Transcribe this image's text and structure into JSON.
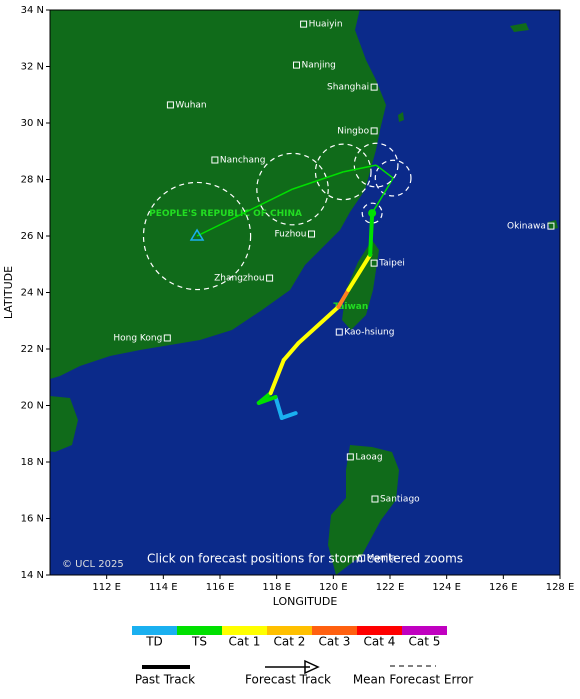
{
  "map": {
    "xlim": [
      110,
      128
    ],
    "ylim": [
      14,
      34
    ],
    "xlabel": "LONGITUDE",
    "ylabel": "LATITUDE",
    "xticks": [
      {
        "value": 112,
        "label": "112 E"
      },
      {
        "value": 114,
        "label": "114 E"
      },
      {
        "value": 116,
        "label": "116 E"
      },
      {
        "value": 118,
        "label": "118 E"
      },
      {
        "value": 120,
        "label": "120 E"
      },
      {
        "value": 122,
        "label": "122 E"
      },
      {
        "value": 124,
        "label": "124 E"
      },
      {
        "value": 126,
        "label": "126 E"
      },
      {
        "value": 128,
        "label": "128 E"
      }
    ],
    "yticks": [
      {
        "value": 14,
        "label": "14 N"
      },
      {
        "value": 16,
        "label": "16 N"
      },
      {
        "value": 18,
        "label": "18 N"
      },
      {
        "value": 20,
        "label": "20 N"
      },
      {
        "value": 22,
        "label": "22 N"
      },
      {
        "value": 24,
        "label": "24 N"
      },
      {
        "value": 26,
        "label": "26 N"
      },
      {
        "value": 28,
        "label": "28 N"
      },
      {
        "value": 30,
        "label": "30 N"
      },
      {
        "value": 32,
        "label": "32 N"
      },
      {
        "value": 34,
        "label": "34 N"
      }
    ],
    "cities": [
      {
        "name": "Huaiyin",
        "lon": 118.95,
        "lat": 33.5
      },
      {
        "name": "Nanjing",
        "lon": 118.7,
        "lat": 32.05
      },
      {
        "name": "Shanghai",
        "lon": 121.44,
        "lat": 31.27
      },
      {
        "name": "Wuhan",
        "lon": 114.25,
        "lat": 30.64
      },
      {
        "name": "Ningbo",
        "lon": 121.44,
        "lat": 29.72
      },
      {
        "name": "Nanchang",
        "lon": 115.82,
        "lat": 28.69
      },
      {
        "name": "Fuzhou",
        "lon": 119.23,
        "lat": 26.07
      },
      {
        "name": "Zhangzhou",
        "lon": 117.75,
        "lat": 24.51
      },
      {
        "name": "Taipei",
        "lon": 121.44,
        "lat": 25.04
      },
      {
        "name": "Kao-hsiung",
        "lon": 120.21,
        "lat": 22.6
      },
      {
        "name": "Hong Kong",
        "lon": 114.14,
        "lat": 22.39
      },
      {
        "name": "Okinawa",
        "lon": 127.68,
        "lat": 26.35
      },
      {
        "name": "Laoag",
        "lon": 120.6,
        "lat": 18.18
      },
      {
        "name": "Santiago",
        "lon": 121.47,
        "lat": 16.69
      },
      {
        "name": "Manila",
        "lon": 121.0,
        "lat": 14.6
      }
    ],
    "regions": [
      {
        "name": "PEOPLE'S REPUBLIC OF CHINA",
        "lon": 113.5,
        "lat": 26.8
      },
      {
        "name": "Taiwan",
        "lon": 120.0,
        "lat": 23.5
      }
    ],
    "past_track": [
      {
        "lon": 118.67,
        "lat": 19.73,
        "color": "#1ab0f0"
      },
      {
        "lon": 118.18,
        "lat": 19.56,
        "color": "#1ab0f0"
      },
      {
        "lon": 117.96,
        "lat": 20.3,
        "color": "#00e000"
      },
      {
        "lon": 117.37,
        "lat": 20.09,
        "color": "#00e000"
      },
      {
        "lon": 117.79,
        "lat": 20.44,
        "color": "#ffff00"
      },
      {
        "lon": 118.25,
        "lat": 21.61,
        "color": "#ffff00"
      },
      {
        "lon": 118.77,
        "lat": 22.21,
        "color": "#ffff00"
      },
      {
        "lon": 120.18,
        "lat": 23.49,
        "color": "#ff8020"
      },
      {
        "lon": 120.53,
        "lat": 24.09,
        "color": "#ffff00"
      },
      {
        "lon": 121.3,
        "lat": 25.33,
        "color": "#00e000"
      },
      {
        "lon": 121.37,
        "lat": 26.81,
        "color": "#00e000"
      }
    ],
    "forecast_track": [
      {
        "lon": 121.37,
        "lat": 26.81,
        "error": 0.35
      },
      {
        "lon": 122.11,
        "lat": 28.05,
        "error": 0.63
      },
      {
        "lon": 121.51,
        "lat": 28.51,
        "error": 0.77
      },
      {
        "lon": 120.35,
        "lat": 28.27,
        "error": 0.98
      },
      {
        "lon": 118.56,
        "lat": 27.66,
        "error": 1.26
      },
      {
        "lon": 115.19,
        "lat": 26.0,
        "error": 1.89
      }
    ],
    "forecast_color": "#00e000",
    "copyright": "© UCL 2025",
    "note": "Click on forecast positions for storm centered zooms",
    "legend": {
      "categories": [
        {
          "name": "TD",
          "color": "#1ab0f0"
        },
        {
          "name": "TS",
          "color": "#00e000"
        },
        {
          "name": "Cat 1",
          "color": "#ffff00"
        },
        {
          "name": "Cat 2",
          "color": "#ffc000"
        },
        {
          "name": "Cat 3",
          "color": "#ff6010"
        },
        {
          "name": "Cat 4",
          "color": "#ff0000"
        },
        {
          "name": "Cat 5",
          "color": "#c000c0"
        }
      ],
      "past": "Past Track",
      "forecast": "Forecast Track",
      "error": "Mean Forecast Error"
    }
  }
}
